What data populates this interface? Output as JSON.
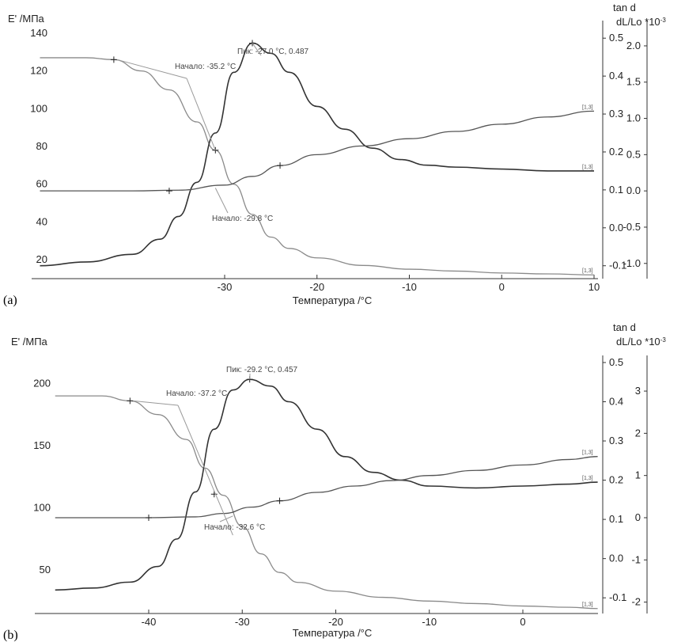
{
  "chart_data": [
    {
      "id": "a",
      "type": "line",
      "panel_label": "(a)",
      "xlabel": "Температура /°C",
      "x_ticks": [
        -30,
        -20,
        -10,
        0,
        10
      ],
      "x_range": [
        -50,
        10
      ],
      "left_axis": {
        "title": "E' /МПа",
        "range": [
          10,
          145
        ],
        "ticks": [
          20,
          40,
          60,
          80,
          100,
          120,
          140
        ]
      },
      "right_axis_1": {
        "title": "tan d",
        "range": [
          -0.134,
          0.538
        ],
        "ticks": [
          "-0.1",
          "0.0",
          "0.1",
          "0.2",
          "0.3",
          "0.4",
          "0.5"
        ],
        "tick_values": [
          -0.1,
          0.0,
          0.1,
          0.2,
          0.3,
          0.4,
          0.5
        ]
      },
      "right_axis_2": {
        "title": "dL/Lo *10-3",
        "range": [
          -1.21,
          2.305
        ],
        "ticks": [
          "-1.0",
          "-0.5",
          "0.0",
          "0.5",
          "1.0",
          "1.5",
          "2.0"
        ],
        "tick_values": [
          -1.0,
          -0.5,
          0.0,
          0.5,
          1.0,
          1.5,
          2.0
        ]
      },
      "series": [
        {
          "name": "E'",
          "axis": "left",
          "color": "#8a8a8a",
          "x": [
            -50,
            -45,
            -42,
            -39,
            -36,
            -33,
            -31,
            -29,
            -27,
            -25,
            -23,
            -20,
            -15,
            -10,
            -5,
            0,
            5,
            10
          ],
          "y": [
            127,
            127,
            126,
            120,
            110,
            93,
            78,
            60,
            44,
            32,
            26,
            21,
            17,
            15,
            14,
            13,
            12.5,
            12
          ]
        },
        {
          "name": "tan d",
          "axis": "right1",
          "color": "#333333",
          "x": [
            -50,
            -45,
            -40,
            -37,
            -35,
            -33,
            -31,
            -29,
            -27,
            -25,
            -23,
            -20,
            -17,
            -14,
            -11,
            -8,
            -5,
            0,
            5,
            10
          ],
          "y": [
            -0.1,
            -0.09,
            -0.07,
            -0.03,
            0.03,
            0.12,
            0.25,
            0.41,
            0.487,
            0.46,
            0.41,
            0.32,
            0.26,
            0.21,
            0.18,
            0.165,
            0.16,
            0.155,
            0.15,
            0.15
          ]
        },
        {
          "name": "dL/Lo",
          "axis": "right2",
          "color": "#555555",
          "x": [
            -50,
            -40,
            -35,
            -30,
            -27,
            -24,
            -20,
            -15,
            -10,
            -5,
            0,
            5,
            10
          ],
          "y": [
            0.0,
            0.0,
            0.01,
            0.08,
            0.2,
            0.35,
            0.5,
            0.62,
            0.72,
            0.82,
            0.92,
            1.02,
            1.1
          ]
        }
      ],
      "markers": [
        {
          "series": "E'",
          "x": -42,
          "y": 126
        },
        {
          "series": "E'",
          "x": -31,
          "y": 78
        },
        {
          "series": "tan d",
          "x": -27,
          "y": 0.487
        },
        {
          "series": "dL/Lo",
          "x": -36,
          "y": 0.0
        },
        {
          "series": "dL/Lo",
          "x": -24,
          "y": 0.35
        }
      ],
      "annotations": {
        "onset_e": "Начало: -35.2 °C",
        "peak": "Пик: -27.0 °C, 0.487",
        "onset_dl": "Начало: -29.8 °C"
      },
      "end_labels": [
        "[1,3]",
        "[1,3]",
        "[1,3]"
      ]
    },
    {
      "id": "b",
      "type": "line",
      "panel_label": "(b)",
      "xlabel": "Температура /°C",
      "x_ticks": [
        -40,
        -30,
        -20,
        -10,
        0
      ],
      "x_range": [
        -50,
        8
      ],
      "left_axis": {
        "title": "E' /МПа",
        "range": [
          15,
          220
        ],
        "ticks": [
          50,
          100,
          150,
          200
        ]
      },
      "right_axis_1": {
        "title": "tan d",
        "range": [
          -0.14,
          0.51
        ],
        "ticks": [
          "-0.1",
          "0.0",
          "0.1",
          "0.2",
          "0.3",
          "0.4",
          "0.5"
        ],
        "tick_values": [
          -0.1,
          0.0,
          0.1,
          0.2,
          0.3,
          0.4,
          0.5
        ]
      },
      "right_axis_2": {
        "title": "dL/Lo *10-3",
        "range": [
          -2.27,
          3.77
        ],
        "ticks": [
          "-2",
          "-1",
          "0",
          "1",
          "2",
          "3"
        ],
        "tick_values": [
          -2,
          -1,
          0,
          1,
          2,
          3
        ]
      },
      "series": [
        {
          "name": "E'",
          "axis": "left",
          "color": "#8a8a8a",
          "x": [
            -50,
            -45,
            -42,
            -39,
            -36,
            -34,
            -32,
            -30,
            -28,
            -26,
            -24,
            -20,
            -15,
            -10,
            -5,
            0,
            5,
            8
          ],
          "y": [
            190,
            190,
            186,
            175,
            155,
            132,
            110,
            85,
            63,
            48,
            40,
            33,
            28,
            25,
            23,
            21,
            20,
            19
          ]
        },
        {
          "name": "tan d",
          "axis": "right1",
          "color": "#333333",
          "x": [
            -50,
            -46,
            -42,
            -39,
            -37,
            -35,
            -33,
            -31,
            -29.2,
            -27,
            -25,
            -22,
            -19,
            -16,
            -13,
            -10,
            -5,
            0,
            5,
            8
          ],
          "y": [
            -0.08,
            -0.075,
            -0.06,
            -0.02,
            0.05,
            0.17,
            0.33,
            0.43,
            0.457,
            0.44,
            0.4,
            0.33,
            0.26,
            0.22,
            0.2,
            0.185,
            0.18,
            0.185,
            0.19,
            0.195
          ]
        },
        {
          "name": "dL/Lo",
          "axis": "right2",
          "color": "#555555",
          "x": [
            -50,
            -40,
            -35,
            -32,
            -29,
            -26,
            -22,
            -18,
            -14,
            -10,
            -5,
            0,
            5,
            8
          ],
          "y": [
            0.0,
            0.0,
            0.02,
            0.1,
            0.25,
            0.4,
            0.6,
            0.75,
            0.88,
            1.0,
            1.12,
            1.25,
            1.38,
            1.45
          ]
        }
      ],
      "markers": [
        {
          "series": "E'",
          "x": -42,
          "y": 186
        },
        {
          "series": "E'",
          "x": -33,
          "y": 111
        },
        {
          "series": "tan d",
          "x": -29.2,
          "y": 0.457
        },
        {
          "series": "dL/Lo",
          "x": -40,
          "y": 0.0
        },
        {
          "series": "dL/Lo",
          "x": -26,
          "y": 0.4
        }
      ],
      "annotations": {
        "onset_e": "Начало: -37.2 °C",
        "peak": "Пик: -29.2 °C, 0.457",
        "onset_dl": "Начало: -32.6 °C"
      },
      "end_labels": [
        "[1,3]",
        "[1,3]",
        "[1,3]"
      ]
    }
  ]
}
